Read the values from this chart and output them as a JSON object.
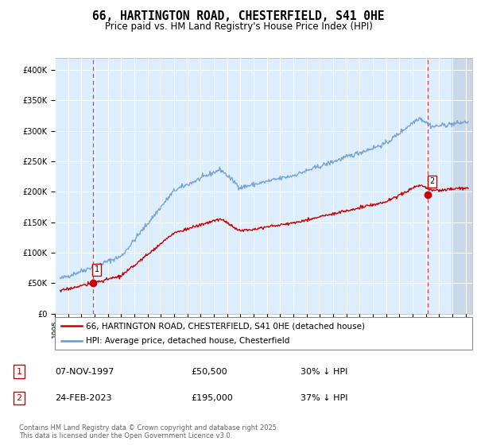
{
  "title": "66, HARTINGTON ROAD, CHESTERFIELD, S41 0HE",
  "subtitle": "Price paid vs. HM Land Registry's House Price Index (HPI)",
  "ylim": [
    0,
    420000
  ],
  "yticks": [
    0,
    50000,
    100000,
    150000,
    200000,
    250000,
    300000,
    350000,
    400000
  ],
  "ytick_labels": [
    "£0",
    "£50K",
    "£100K",
    "£150K",
    "£200K",
    "£250K",
    "£300K",
    "£350K",
    "£400K"
  ],
  "xlim_start": 1995.3,
  "xlim_end": 2026.5,
  "sale1_year": 1997.86,
  "sale1_price": 50500,
  "sale1_label": "1",
  "sale1_date": "07-NOV-1997",
  "sale1_pct": "30% ↓ HPI",
  "sale2_year": 2023.15,
  "sale2_price": 195000,
  "sale2_label": "2",
  "sale2_date": "24-FEB-2023",
  "sale2_pct": "37% ↓ HPI",
  "sale_color": "#cc0000",
  "hpi_color": "#6699cc",
  "background_color": "#ffffff",
  "plot_bg_color": "#ddeeff",
  "grid_color": "#ffffff",
  "vline_color": "#cc0000",
  "legend_line1": "66, HARTINGTON ROAD, CHESTERFIELD, S41 0HE (detached house)",
  "legend_line2": "HPI: Average price, detached house, Chesterfield",
  "footer": "Contains HM Land Registry data © Crown copyright and database right 2025.\nThis data is licensed under the Open Government Licence v3.0.",
  "title_fontsize": 10.5,
  "subtitle_fontsize": 8.5,
  "tick_fontsize": 7,
  "legend_fontsize": 7.5,
  "footer_fontsize": 6
}
